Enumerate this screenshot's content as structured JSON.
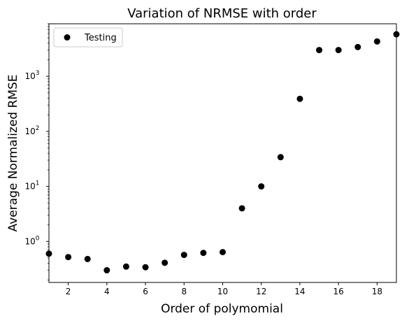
{
  "chart_data": {
    "type": "scatter",
    "title": "Variation of NRMSE with order",
    "xlabel": "Order of polymomial",
    "ylabel": "Average Normalized RMSE",
    "xlim": [
      1,
      19
    ],
    "ylim": [
      0.18,
      9000
    ],
    "yscale": "log",
    "grid": false,
    "legend": "top-left",
    "marker_color": "#000000",
    "x_ticks": [
      2,
      4,
      6,
      8,
      10,
      12,
      14,
      16,
      18
    ],
    "x_tick_labels": [
      "2",
      "4",
      "6",
      "8",
      "10",
      "12",
      "14",
      "16",
      "18"
    ],
    "y_ticks": [
      1,
      10,
      100,
      1000
    ],
    "y_tick_labels": [
      {
        "base": "10",
        "exp": "0"
      },
      {
        "base": "10",
        "exp": "1"
      },
      {
        "base": "10",
        "exp": "2"
      },
      {
        "base": "10",
        "exp": "3"
      }
    ],
    "series": [
      {
        "name": "Testing",
        "x": [
          1,
          2,
          3,
          4,
          5,
          6,
          7,
          8,
          9,
          10,
          11,
          12,
          13,
          14,
          15,
          16,
          17,
          18,
          19
        ],
        "y": [
          0.6,
          0.52,
          0.48,
          0.3,
          0.35,
          0.34,
          0.41,
          0.57,
          0.62,
          0.64,
          4.0,
          10.0,
          34.0,
          390,
          3000,
          3000,
          3400,
          4300,
          5800
        ]
      }
    ]
  }
}
